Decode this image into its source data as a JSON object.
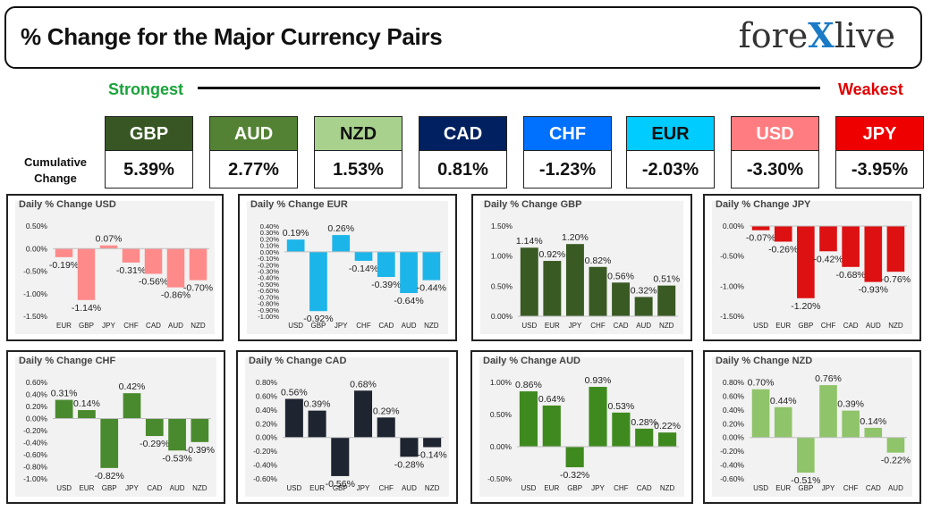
{
  "header": {
    "title": "% Change for the Major Currency Pairs",
    "logo_left": "fore",
    "logo_x": "X",
    "logo_right": "live"
  },
  "labels": {
    "strongest": "Strongest",
    "weakest": "Weakest",
    "cumulative": "Cumulative Change"
  },
  "currencies": [
    {
      "code": "GBP",
      "value": "5.39%",
      "bg": "#375623",
      "fg": "#ffffff"
    },
    {
      "code": "AUD",
      "value": "2.77%",
      "bg": "#548235",
      "fg": "#ffffff"
    },
    {
      "code": "NZD",
      "value": "1.53%",
      "bg": "#a9d18e",
      "fg": "#111111"
    },
    {
      "code": "CAD",
      "value": "0.81%",
      "bg": "#002060",
      "fg": "#ffffff"
    },
    {
      "code": "CHF",
      "value": "-1.23%",
      "bg": "#0070ff",
      "fg": "#ffffff"
    },
    {
      "code": "EUR",
      "value": "-2.03%",
      "bg": "#00ccff",
      "fg": "#111111"
    },
    {
      "code": "USD",
      "value": "-3.30%",
      "bg": "#ff7c80",
      "fg": "#ffffff"
    },
    {
      "code": "JPY",
      "value": "-3.95%",
      "bg": "#ee0000",
      "fg": "#ffffff"
    }
  ],
  "chart_data": [
    {
      "type": "bar",
      "title": "Daily % Change USD",
      "categories": [
        "EUR",
        "GBP",
        "JPY",
        "CHF",
        "CAD",
        "AUD",
        "NZD"
      ],
      "values": [
        -0.19,
        -1.14,
        0.07,
        -0.31,
        -0.56,
        -0.86,
        -0.7
      ],
      "labels": [
        "-0.19%",
        "-1.14%",
        "0.07%",
        "-0.31%",
        "-0.56%",
        "-0.86%",
        "-0.70%"
      ],
      "yticks": [
        0.5,
        0,
        -0.5,
        -1.0,
        -1.5
      ],
      "yticklabels": [
        "0.50%",
        "0.00%",
        "-0.50%",
        "-1.00%",
        "-1.50%"
      ],
      "ylim": [
        -1.5,
        0.5
      ],
      "color": "#ff8a8a"
    },
    {
      "type": "bar",
      "title": "Daily % Change EUR",
      "categories": [
        "USD",
        "GBP",
        "JPY",
        "CHF",
        "CAD",
        "AUD",
        "NZD"
      ],
      "values": [
        0.19,
        -0.92,
        0.26,
        -0.14,
        -0.39,
        -0.64,
        -0.44
      ],
      "labels": [
        "0.19%",
        "-0.92%",
        "0.26%",
        "-0.14%",
        "-0.39%",
        "-0.64%",
        "-0.44%"
      ],
      "yticks": [
        0.4,
        0.3,
        0.2,
        0.1,
        0,
        -0.1,
        -0.2,
        -0.3,
        -0.4,
        -0.5,
        -0.6,
        -0.7,
        -0.8,
        -0.9,
        -1.0
      ],
      "yticklabels": [
        "0.40%",
        "0.30%",
        "0.20%",
        "0.10%",
        "0.00%",
        "-0.10%",
        "-0.20%",
        "-0.30%",
        "-0.40%",
        "-0.50%",
        "-0.60%",
        "-0.70%",
        "-0.80%",
        "-0.90%",
        "-1.00%"
      ],
      "ylim": [
        -1.0,
        0.4
      ],
      "color": "#1cb5ea"
    },
    {
      "type": "bar",
      "title": "Daily % Change GBP",
      "categories": [
        "USD",
        "EUR",
        "JPY",
        "CHF",
        "CAD",
        "AUD",
        "NZD"
      ],
      "values": [
        1.14,
        0.92,
        1.2,
        0.82,
        0.56,
        0.32,
        0.51
      ],
      "labels": [
        "1.14%",
        "0.92%",
        "1.20%",
        "0.82%",
        "0.56%",
        "0.32%",
        "0.51%"
      ],
      "yticks": [
        1.5,
        1.0,
        0.5,
        0
      ],
      "yticklabels": [
        "1.50%",
        "1.00%",
        "0.50%",
        "0.00%"
      ],
      "ylim": [
        0,
        1.5
      ],
      "color": "#3a5a24"
    },
    {
      "type": "bar",
      "title": "Daily % Change JPY",
      "categories": [
        "USD",
        "EUR",
        "GBP",
        "CHF",
        "CAD",
        "AUD",
        "NZD"
      ],
      "values": [
        -0.07,
        -0.26,
        -1.2,
        -0.42,
        -0.68,
        -0.93,
        -0.76
      ],
      "labels": [
        "-0.07%",
        "-0.26%",
        "-1.20%",
        "-0.42%",
        "-0.68%",
        "-0.93%",
        "-0.76%"
      ],
      "yticks": [
        0,
        -0.5,
        -1.0,
        -1.5
      ],
      "yticklabels": [
        "0.00%",
        "-0.50%",
        "-1.00%",
        "-1.50%"
      ],
      "ylim": [
        -1.5,
        0
      ],
      "color": "#dd1111"
    },
    {
      "type": "bar",
      "title": "Daily % Change CHF",
      "categories": [
        "USD",
        "EUR",
        "GBP",
        "JPY",
        "CAD",
        "AUD",
        "NZD"
      ],
      "values": [
        0.31,
        0.14,
        -0.82,
        0.42,
        -0.29,
        -0.53,
        -0.39
      ],
      "labels": [
        "0.31%",
        "0.14%",
        "-0.82%",
        "0.42%",
        "-0.29%",
        "-0.53%",
        "-0.39%"
      ],
      "yticks": [
        0.6,
        0.4,
        0.2,
        0,
        -0.2,
        -0.4,
        -0.6,
        -0.8,
        -1.0
      ],
      "yticklabels": [
        "0.60%",
        "0.40%",
        "0.20%",
        "0.00%",
        "-0.20%",
        "-0.40%",
        "-0.60%",
        "-0.80%",
        "-1.00%"
      ],
      "ylim": [
        -1.0,
        0.6
      ],
      "color": "#4a8a2e"
    },
    {
      "type": "bar",
      "title": "Daily % Change CAD",
      "categories": [
        "USD",
        "EUR",
        "GBP",
        "JPY",
        "CHF",
        "AUD",
        "NZD"
      ],
      "values": [
        0.56,
        0.39,
        -0.56,
        0.68,
        0.29,
        -0.28,
        -0.14
      ],
      "labels": [
        "0.56%",
        "0.39%",
        "-0.56%",
        "0.68%",
        "0.29%",
        "-0.28%",
        "-0.14%"
      ],
      "yticks": [
        0.8,
        0.6,
        0.4,
        0.2,
        0,
        -0.2,
        -0.4,
        -0.6
      ],
      "yticklabels": [
        "0.80%",
        "0.60%",
        "0.40%",
        "0.20%",
        "0.00%",
        "-0.20%",
        "-0.40%",
        "-0.60%"
      ],
      "ylim": [
        -0.6,
        0.8
      ],
      "color": "#1e2430"
    },
    {
      "type": "bar",
      "title": "Daily % Change AUD",
      "categories": [
        "USD",
        "EUR",
        "GBP",
        "JPY",
        "CHF",
        "CAD",
        "NZD"
      ],
      "values": [
        0.86,
        0.64,
        -0.32,
        0.93,
        0.53,
        0.28,
        0.22
      ],
      "labels": [
        "0.86%",
        "0.64%",
        "-0.32%",
        "0.93%",
        "0.53%",
        "0.28%",
        "0.22%"
      ],
      "yticks": [
        1.0,
        0.5,
        0,
        -0.5
      ],
      "yticklabels": [
        "1.00%",
        "0.50%",
        "0.00%",
        "-0.50%"
      ],
      "ylim": [
        -0.5,
        1.0
      ],
      "color": "#3f8a1f"
    },
    {
      "type": "bar",
      "title": "Daily % Change NZD",
      "categories": [
        "USD",
        "EUR",
        "GBP",
        "JPY",
        "CHF",
        "CAD",
        "AUD"
      ],
      "values": [
        0.7,
        0.44,
        -0.51,
        0.76,
        0.39,
        0.14,
        -0.22
      ],
      "labels": [
        "0.70%",
        "0.44%",
        "-0.51%",
        "0.76%",
        "0.39%",
        "0.14%",
        "-0.22%"
      ],
      "yticks": [
        0.8,
        0.6,
        0.4,
        0.2,
        0,
        -0.2,
        -0.4,
        -0.6
      ],
      "yticklabels": [
        "0.80%",
        "0.60%",
        "0.40%",
        "0.20%",
        "0.00%",
        "-0.20%",
        "-0.40%",
        "-0.60%"
      ],
      "ylim": [
        -0.6,
        0.8
      ],
      "color": "#8fc46a"
    }
  ]
}
